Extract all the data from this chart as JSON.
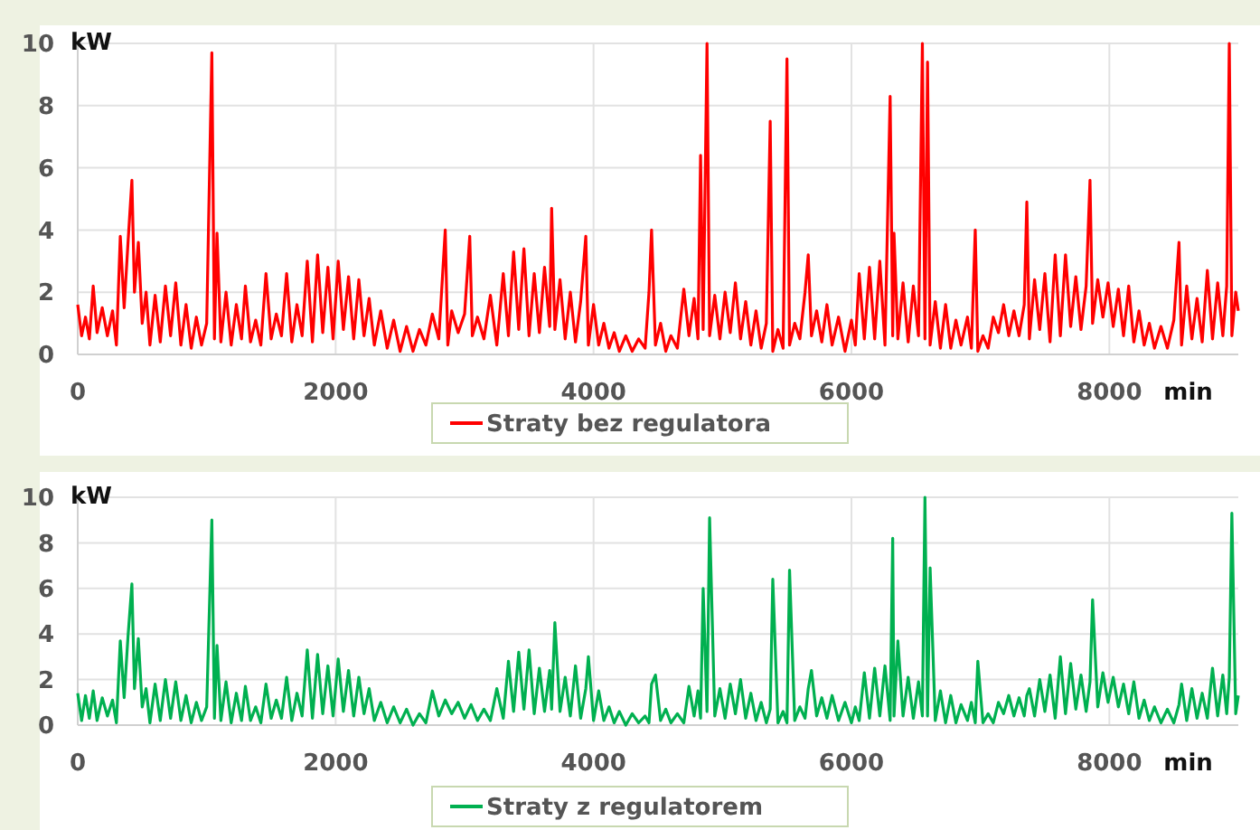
{
  "chart_data": [
    {
      "type": "line",
      "xlabel": "min",
      "ylabel": "kW",
      "xlim": [
        0,
        9000
      ],
      "xticks": [
        0,
        2000,
        4000,
        6000,
        8000
      ],
      "ylim": [
        0,
        10
      ],
      "yticks": [
        0,
        2,
        4,
        6,
        8,
        10
      ],
      "grid": true,
      "legend": "bottom",
      "series": [
        {
          "name": "Straty bez regulatora",
          "color": "#ff0000",
          "x": [
            0,
            30,
            60,
            90,
            120,
            150,
            190,
            230,
            270,
            300,
            330,
            360,
            390,
            420,
            440,
            470,
            500,
            530,
            560,
            600,
            640,
            680,
            720,
            760,
            800,
            840,
            880,
            920,
            960,
            1000,
            1040,
            1060,
            1080,
            1110,
            1150,
            1190,
            1230,
            1270,
            1300,
            1340,
            1380,
            1420,
            1460,
            1500,
            1540,
            1580,
            1620,
            1660,
            1700,
            1740,
            1780,
            1820,
            1860,
            1900,
            1940,
            1980,
            2020,
            2060,
            2100,
            2140,
            2180,
            2220,
            2260,
            2300,
            2350,
            2400,
            2450,
            2500,
            2550,
            2600,
            2650,
            2700,
            2750,
            2800,
            2850,
            2870,
            2900,
            2950,
            3000,
            3040,
            3060,
            3100,
            3150,
            3200,
            3250,
            3300,
            3340,
            3380,
            3420,
            3460,
            3500,
            3540,
            3580,
            3620,
            3660,
            3675,
            3700,
            3740,
            3780,
            3820,
            3860,
            3900,
            3940,
            3960,
            4000,
            4040,
            4080,
            4120,
            4160,
            4200,
            4250,
            4300,
            4350,
            4400,
            4430,
            4450,
            4480,
            4520,
            4560,
            4600,
            4650,
            4700,
            4740,
            4780,
            4810,
            4830,
            4850,
            4880,
            4900,
            4940,
            4980,
            5020,
            5060,
            5100,
            5140,
            5180,
            5220,
            5260,
            5300,
            5340,
            5370,
            5390,
            5430,
            5470,
            5500,
            5520,
            5560,
            5600,
            5640,
            5665,
            5690,
            5730,
            5770,
            5810,
            5850,
            5900,
            5950,
            6000,
            6030,
            6060,
            6100,
            6140,
            6180,
            6220,
            6260,
            6300,
            6320,
            6330,
            6360,
            6400,
            6440,
            6480,
            6520,
            6550,
            6570,
            6590,
            6610,
            6650,
            6690,
            6730,
            6770,
            6810,
            6850,
            6900,
            6930,
            6960,
            6980,
            7020,
            7060,
            7100,
            7140,
            7180,
            7220,
            7260,
            7300,
            7340,
            7360,
            7380,
            7420,
            7460,
            7500,
            7540,
            7580,
            7620,
            7660,
            7700,
            7740,
            7780,
            7820,
            7850,
            7870,
            7910,
            7950,
            7990,
            8030,
            8070,
            8110,
            8150,
            8190,
            8230,
            8270,
            8310,
            8350,
            8400,
            8450,
            8500,
            8540,
            8560,
            8600,
            8640,
            8680,
            8720,
            8760,
            8800,
            8840,
            8880,
            8910,
            8930,
            8950,
            8980,
            9000
          ],
          "values": [
            1.6,
            0.6,
            1.2,
            0.5,
            2.2,
            0.7,
            1.5,
            0.6,
            1.4,
            0.3,
            3.8,
            1.5,
            3.6,
            5.6,
            2.0,
            3.6,
            1.0,
            2.0,
            0.3,
            1.9,
            0.4,
            2.2,
            0.6,
            2.3,
            0.3,
            1.6,
            0.2,
            1.2,
            0.3,
            1.0,
            9.7,
            0.5,
            3.9,
            0.4,
            2.0,
            0.3,
            1.6,
            0.5,
            2.2,
            0.4,
            1.1,
            0.3,
            2.6,
            0.5,
            1.3,
            0.6,
            2.6,
            0.4,
            1.6,
            0.6,
            3.0,
            0.4,
            3.2,
            0.7,
            2.8,
            0.5,
            3.0,
            0.8,
            2.5,
            0.5,
            2.4,
            0.6,
            1.8,
            0.3,
            1.4,
            0.2,
            1.1,
            0.1,
            0.9,
            0.1,
            0.8,
            0.3,
            1.3,
            0.5,
            4.0,
            0.3,
            1.4,
            0.7,
            1.3,
            3.8,
            0.6,
            1.2,
            0.5,
            1.9,
            0.3,
            2.6,
            0.6,
            3.3,
            0.8,
            3.4,
            0.6,
            2.6,
            0.7,
            2.8,
            0.9,
            4.7,
            0.8,
            2.4,
            0.5,
            2.0,
            0.4,
            1.7,
            3.8,
            0.3,
            1.6,
            0.3,
            1.0,
            0.2,
            0.7,
            0.1,
            0.6,
            0.1,
            0.5,
            0.2,
            2.0,
            4.0,
            0.3,
            1.0,
            0.1,
            0.6,
            0.2,
            2.1,
            0.6,
            1.8,
            0.5,
            6.4,
            0.8,
            10,
            0.6,
            1.9,
            0.5,
            2.0,
            0.7,
            2.3,
            0.5,
            1.7,
            0.3,
            1.4,
            0.2,
            1.0,
            7.5,
            0.1,
            0.8,
            0.2,
            9.5,
            0.3,
            1.0,
            0.5,
            2.0,
            3.2,
            0.6,
            1.4,
            0.4,
            1.6,
            0.3,
            1.2,
            0.1,
            1.1,
            0.3,
            2.6,
            0.5,
            2.8,
            0.5,
            3.0,
            0.3,
            8.3,
            0.6,
            3.9,
            0.5,
            2.3,
            0.4,
            2.2,
            0.6,
            10,
            0.5,
            9.4,
            0.3,
            1.7,
            0.2,
            1.6,
            0.2,
            1.1,
            0.3,
            1.2,
            0.2,
            4.0,
            0.1,
            0.6,
            0.2,
            1.2,
            0.7,
            1.6,
            0.6,
            1.4,
            0.6,
            1.6,
            4.9,
            0.5,
            2.4,
            0.8,
            2.6,
            0.4,
            3.2,
            0.6,
            3.2,
            0.9,
            2.5,
            0.8,
            2.2,
            5.6,
            1.0,
            2.4,
            1.2,
            2.3,
            0.9,
            2.1,
            0.6,
            2.2,
            0.4,
            1.4,
            0.3,
            1.0,
            0.2,
            0.9,
            0.2,
            1.1,
            3.6,
            0.3,
            2.2,
            0.5,
            1.8,
            0.4,
            2.7,
            0.5,
            2.3,
            0.6,
            2.2,
            10,
            0.6,
            2.0,
            1.4
          ]
        }
      ]
    },
    {
      "type": "line",
      "xlabel": "min",
      "ylabel": "kW",
      "xlim": [
        0,
        9000
      ],
      "xticks": [
        0,
        2000,
        4000,
        6000,
        8000
      ],
      "ylim": [
        0,
        10
      ],
      "yticks": [
        0,
        2,
        4,
        6,
        8,
        10
      ],
      "grid": true,
      "legend": "bottom",
      "series": [
        {
          "name": "Straty z regulatorem",
          "color": "#00b050",
          "x": [
            0,
            30,
            60,
            90,
            120,
            150,
            190,
            230,
            270,
            300,
            330,
            360,
            390,
            420,
            440,
            470,
            500,
            530,
            560,
            600,
            640,
            680,
            720,
            760,
            800,
            840,
            880,
            920,
            960,
            1000,
            1040,
            1060,
            1080,
            1110,
            1150,
            1190,
            1230,
            1270,
            1300,
            1340,
            1380,
            1420,
            1460,
            1500,
            1540,
            1580,
            1620,
            1660,
            1700,
            1740,
            1780,
            1820,
            1860,
            1900,
            1940,
            1980,
            2020,
            2060,
            2100,
            2140,
            2180,
            2220,
            2260,
            2300,
            2350,
            2400,
            2450,
            2500,
            2550,
            2600,
            2650,
            2700,
            2750,
            2800,
            2850,
            2900,
            2950,
            3000,
            3050,
            3100,
            3150,
            3200,
            3250,
            3300,
            3340,
            3380,
            3420,
            3460,
            3500,
            3540,
            3580,
            3620,
            3660,
            3675,
            3700,
            3740,
            3780,
            3820,
            3860,
            3900,
            3940,
            3960,
            4000,
            4040,
            4080,
            4120,
            4160,
            4200,
            4250,
            4300,
            4350,
            4400,
            4430,
            4450,
            4480,
            4520,
            4560,
            4600,
            4650,
            4700,
            4740,
            4780,
            4810,
            4830,
            4850,
            4880,
            4900,
            4940,
            4980,
            5020,
            5060,
            5100,
            5140,
            5180,
            5220,
            5260,
            5300,
            5340,
            5370,
            5390,
            5430,
            5470,
            5500,
            5520,
            5560,
            5600,
            5640,
            5665,
            5690,
            5730,
            5770,
            5810,
            5850,
            5900,
            5950,
            6000,
            6030,
            6060,
            6100,
            6140,
            6180,
            6220,
            6260,
            6300,
            6320,
            6330,
            6360,
            6400,
            6440,
            6480,
            6520,
            6550,
            6570,
            6590,
            6610,
            6650,
            6690,
            6730,
            6770,
            6810,
            6850,
            6900,
            6930,
            6960,
            6980,
            7020,
            7060,
            7100,
            7140,
            7180,
            7220,
            7260,
            7300,
            7340,
            7360,
            7380,
            7420,
            7460,
            7500,
            7540,
            7580,
            7620,
            7660,
            7700,
            7740,
            7780,
            7820,
            7850,
            7870,
            7910,
            7950,
            7990,
            8030,
            8070,
            8110,
            8150,
            8190,
            8230,
            8270,
            8310,
            8350,
            8400,
            8450,
            8500,
            8540,
            8560,
            8600,
            8640,
            8680,
            8720,
            8760,
            8800,
            8840,
            8880,
            8910,
            8930,
            8950,
            8980,
            9000
          ],
          "values": [
            1.4,
            0.2,
            1.3,
            0.3,
            1.5,
            0.2,
            1.2,
            0.4,
            1.1,
            0.1,
            3.7,
            1.2,
            3.9,
            6.2,
            1.6,
            3.8,
            0.8,
            1.6,
            0.1,
            1.8,
            0.2,
            2.0,
            0.3,
            1.9,
            0.2,
            1.3,
            0.1,
            1.0,
            0.2,
            0.8,
            9.0,
            0.3,
            3.5,
            0.2,
            1.9,
            0.1,
            1.4,
            0.2,
            1.7,
            0.2,
            0.8,
            0.1,
            1.8,
            0.3,
            1.1,
            0.3,
            2.1,
            0.2,
            1.4,
            0.4,
            3.3,
            0.3,
            3.1,
            0.5,
            2.6,
            0.4,
            2.9,
            0.6,
            2.4,
            0.4,
            2.1,
            0.5,
            1.6,
            0.2,
            1.0,
            0.1,
            0.8,
            0.1,
            0.7,
            0.0,
            0.5,
            0.1,
            1.5,
            0.4,
            1.1,
            0.5,
            1.0,
            0.3,
            0.9,
            0.2,
            0.7,
            0.2,
            1.6,
            0.3,
            2.8,
            0.6,
            3.2,
            0.7,
            3.3,
            0.5,
            2.5,
            0.6,
            2.4,
            0.7,
            4.5,
            0.6,
            2.1,
            0.4,
            2.6,
            0.3,
            1.6,
            3.0,
            0.2,
            1.5,
            0.2,
            0.8,
            0.1,
            0.6,
            0.0,
            0.5,
            0.1,
            0.4,
            0.1,
            1.8,
            2.2,
            0.2,
            0.7,
            0.1,
            0.5,
            0.1,
            1.7,
            0.4,
            1.5,
            0.3,
            6.0,
            0.6,
            9.1,
            0.4,
            1.6,
            0.3,
            1.8,
            0.5,
            2.0,
            0.3,
            1.4,
            0.2,
            1.0,
            0.1,
            0.7,
            6.4,
            0.1,
            0.6,
            0.1,
            6.8,
            0.2,
            0.8,
            0.3,
            1.6,
            2.4,
            0.4,
            1.2,
            0.3,
            1.3,
            0.2,
            1.0,
            0.1,
            0.8,
            0.2,
            2.3,
            0.3,
            2.5,
            0.4,
            2.6,
            0.2,
            8.2,
            0.4,
            3.7,
            0.4,
            2.1,
            0.3,
            1.9,
            0.4,
            10,
            0.4,
            6.9,
            0.2,
            1.5,
            0.1,
            1.3,
            0.1,
            0.9,
            0.2,
            1.0,
            0.1,
            2.8,
            0.1,
            0.5,
            0.1,
            1.0,
            0.5,
            1.3,
            0.4,
            1.2,
            0.4,
            1.3,
            1.6,
            0.4,
            2.0,
            0.6,
            2.2,
            0.3,
            3.0,
            0.5,
            2.7,
            0.7,
            2.2,
            0.6,
            1.9,
            5.5,
            0.8,
            2.3,
            1.0,
            2.1,
            0.8,
            1.8,
            0.5,
            1.9,
            0.3,
            1.1,
            0.2,
            0.8,
            0.1,
            0.7,
            0.1,
            0.9,
            1.8,
            0.2,
            1.6,
            0.3,
            1.4,
            0.3,
            2.5,
            0.4,
            2.2,
            0.5,
            2.1,
            9.3,
            0.5,
            1.3
          ]
        }
      ]
    }
  ]
}
